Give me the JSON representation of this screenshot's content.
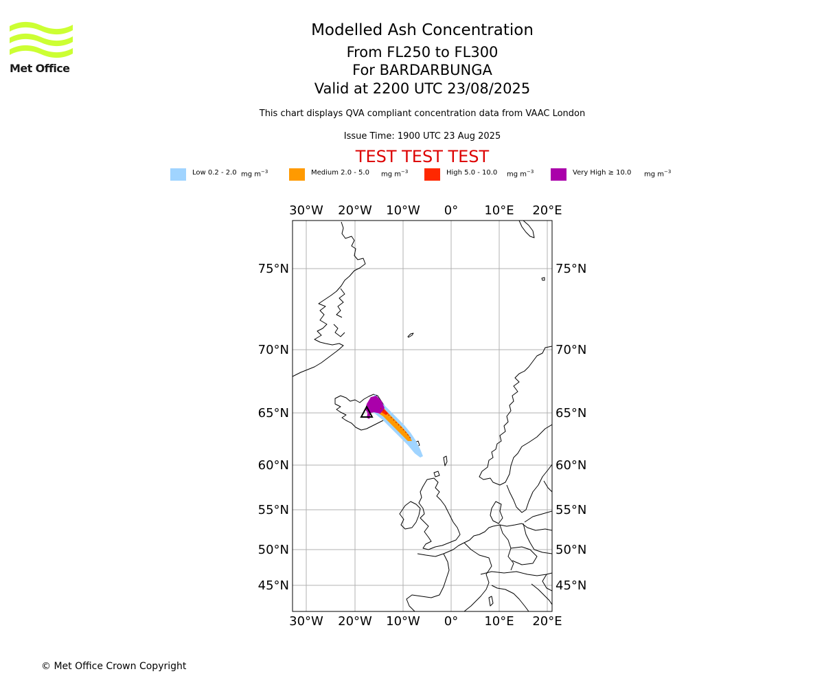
{
  "logo": {
    "text": "Met Office",
    "color": "#ccff33"
  },
  "title": {
    "main": "Modelled Ash Concentration",
    "levels": "From FL250 to FL300",
    "volcano": "For BARDARBUNGA",
    "valid": "Valid at 2200 UTC 23/08/2025",
    "note": "This chart displays QVA compliant concentration data from VAAC London",
    "issue": "Issue Time: 1900 UTC 23 Aug 2025",
    "test_banner": "TEST TEST TEST"
  },
  "legend": [
    {
      "label": "Low 0.2 - 2.0",
      "unit": "mg m",
      "exp": "−3",
      "color": "#a0d4ff"
    },
    {
      "label": "Medium 2.0 - 5.0",
      "unit": "mg m",
      "exp": "−3",
      "color": "#ff9a00"
    },
    {
      "label": "High 5.0 - 10.0",
      "unit": "mg m",
      "exp": "−3",
      "color": "#ff2800"
    },
    {
      "label": "Very High ≥ 10.0",
      "unit": "mg m",
      "exp": "−3",
      "color": "#aa00aa"
    }
  ],
  "map": {
    "lon_labels": [
      "30°W",
      "20°W",
      "10°W",
      "0°",
      "10°E",
      "20°E"
    ],
    "lat_labels": [
      "75°N",
      "70°N",
      "65°N",
      "60°N",
      "55°N",
      "50°N",
      "45°N"
    ],
    "grid_color": "#b0b0b0",
    "volcano_marker": "triangle"
  },
  "copyright": "© Met Office Crown Copyright"
}
